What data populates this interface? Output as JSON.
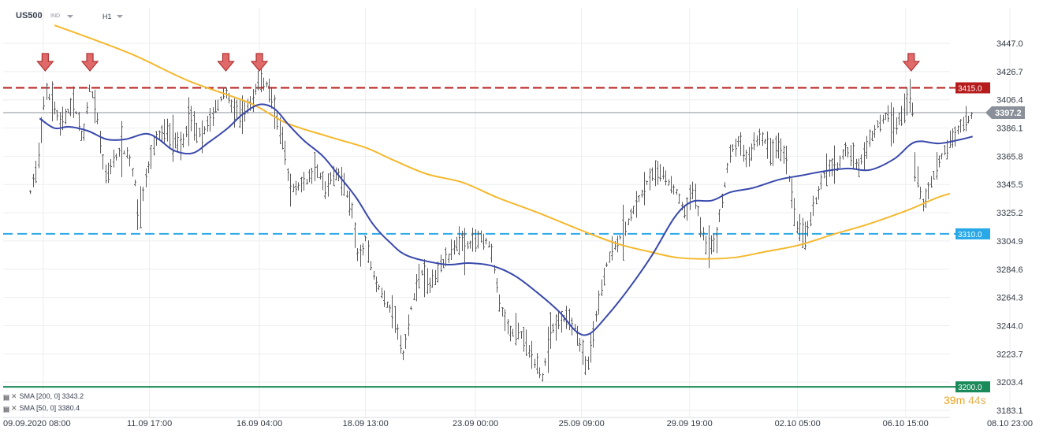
{
  "header": {
    "symbol": "US500",
    "instrument_type": "IND",
    "timeframe": "H1"
  },
  "countdown": {
    "minutes": "39",
    "m_unit": "m",
    "seconds": "44",
    "s_unit": "s"
  },
  "indicators": [
    {
      "icon": "x-icon",
      "label": "SMA [200, 0] 3343.2"
    },
    {
      "icon": "x-icon",
      "label": "SMA [50, 0] 3380.4"
    }
  ],
  "colors": {
    "sma200": "#f5b82e",
    "sma50": "#3949ab",
    "bars": "#5a5a5a",
    "resistance": "#b71c1c",
    "support_mid": "#29a8e8",
    "support_low": "#1a8a5a",
    "current": "#8a9099",
    "arrow_fill": "#e06a6a",
    "arrow_stroke": "#b03030"
  },
  "chart_data": {
    "type": "ohlc",
    "x_tick_labels": [
      "09.09.2020 08:00",
      "11.09 17:00",
      "16.09 04:00",
      "18.09 13:00",
      "23.09 00:00",
      "25.09 09:00",
      "29.09 19:00",
      "02.10 05:00",
      "06.10 15:00",
      "08.10 23:00"
    ],
    "y_tick_labels": [
      3447.0,
      3426.7,
      3406.4,
      3386.1,
      3365.8,
      3345.5,
      3325.2,
      3304.9,
      3284.6,
      3264.3,
      3244.0,
      3223.7,
      3203.4,
      3183.1
    ],
    "ylim": [
      3183.1,
      3447.0
    ],
    "horizontal_levels": [
      {
        "value": 3415.0,
        "label": "3415.0",
        "style": "dashed",
        "color": "#b71c1c"
      },
      {
        "value": 3310.0,
        "label": "3310.0",
        "style": "dashed",
        "color": "#29a8e8"
      },
      {
        "value": 3200.0,
        "label": "3200.0",
        "style": "solid",
        "color": "#1a8a5a"
      }
    ],
    "current_price": {
      "value": 3397.2,
      "label": "3397.2"
    },
    "sma50_path": [
      [
        "09.09 06:00",
        3393
      ],
      [
        "09.09 14:00",
        3386
      ],
      [
        "09.09 22:00",
        3387
      ],
      [
        "10.09 08:00",
        3384
      ],
      [
        "10.09 18:00",
        3378
      ],
      [
        "11.09 04:00",
        3378
      ],
      [
        "11.09 15:00",
        3382
      ],
      [
        "11.09 22:00",
        3378
      ],
      [
        "14.09 06:00",
        3370
      ],
      [
        "14.09 16:00",
        3368
      ],
      [
        "15.09 01:00",
        3376
      ],
      [
        "15.09 11:00",
        3386
      ],
      [
        "15.09 19:00",
        3396
      ],
      [
        "16.09 04:00",
        3403
      ],
      [
        "16.09 12:00",
        3400
      ],
      [
        "16.09 20:00",
        3388
      ],
      [
        "17.09 04:00",
        3377
      ],
      [
        "17.09 14:00",
        3366
      ],
      [
        "17.09 22:00",
        3353
      ],
      [
        "18.09 08:00",
        3336
      ],
      [
        "18.09 17:00",
        3317
      ],
      [
        "21.09 02:00",
        3304
      ],
      [
        "21.09 12:00",
        3294
      ],
      [
        "22.09 08:00",
        3288
      ],
      [
        "22.09 20:00",
        3289
      ],
      [
        "23.09 09:00",
        3287
      ],
      [
        "23.09 21:00",
        3280
      ],
      [
        "24.09 09:00",
        3268
      ],
      [
        "24.09 21:00",
        3254
      ],
      [
        "25.09 06:00",
        3240
      ],
      [
        "25.09 13:00",
        3238
      ],
      [
        "25.09 22:00",
        3250
      ],
      [
        "28.09 10:00",
        3270
      ],
      [
        "28.09 23:00",
        3295
      ],
      [
        "29.09 11:00",
        3322
      ],
      [
        "29.09 20:00",
        3333
      ],
      [
        "30.09 07:00",
        3334
      ],
      [
        "30.09 17:00",
        3340
      ],
      [
        "01.10 05:00",
        3343
      ],
      [
        "01.10 19:00",
        3349
      ],
      [
        "02.10 07:00",
        3352
      ],
      [
        "02.10 19:00",
        3355
      ],
      [
        "05.10 08:00",
        3357
      ],
      [
        "05.10 20:00",
        3356
      ],
      [
        "06.10 09:00",
        3364
      ],
      [
        "06.10 20:00",
        3376
      ],
      [
        "07.10 09:00",
        3375
      ],
      [
        "07.10 21:00",
        3378
      ],
      [
        "08.10 03:00",
        3380
      ]
    ],
    "sma200_path": [
      [
        "09.09 14:00",
        3460
      ],
      [
        "11.09 06:00",
        3440
      ],
      [
        "14.09 14:00",
        3420
      ],
      [
        "15.09 23:00",
        3404
      ],
      [
        "16.09 18:00",
        3390
      ],
      [
        "17.09 17:00",
        3380
      ],
      [
        "18.09 13:00",
        3372
      ],
      [
        "21.09 04:00",
        3363
      ],
      [
        "21.09 22:00",
        3353
      ],
      [
        "22.09 17:00",
        3347
      ],
      [
        "23.09 12:00",
        3336
      ],
      [
        "24.09 10:00",
        3325
      ],
      [
        "25.09 08:00",
        3313
      ],
      [
        "28.09 04:00",
        3303
      ],
      [
        "28.09 22:00",
        3297
      ],
      [
        "29.09 12:00",
        3293
      ],
      [
        "30.09 02:00",
        3292
      ],
      [
        "30.09 19:00",
        3293
      ],
      [
        "01.10 11:00",
        3297
      ],
      [
        "02.10 06:00",
        3302
      ],
      [
        "05.10 01:00",
        3310
      ],
      [
        "05.10 19:00",
        3317
      ],
      [
        "06.10 16:00",
        3327
      ],
      [
        "07.10 10:00",
        3337
      ],
      [
        "08.10 03:00",
        3343
      ]
    ],
    "bar_anchors": [
      [
        "09.09 01:00",
        3340
      ],
      [
        "09.09 05:00",
        3362
      ],
      [
        "09.09 09:00",
        3413
      ],
      [
        "09.09 13:00",
        3404
      ],
      [
        "09.09 17:00",
        3388
      ],
      [
        "10.09 00:00",
        3405
      ],
      [
        "10.09 05:00",
        3378
      ],
      [
        "10.09 09:00",
        3418
      ],
      [
        "10.09 13:00",
        3392
      ],
      [
        "10.09 17:00",
        3350
      ],
      [
        "11.09 01:00",
        3370
      ],
      [
        "11.09 05:00",
        3368
      ],
      [
        "11.09 09:00",
        3348
      ],
      [
        "11.09 11:00",
        3320
      ],
      [
        "11.09 14:00",
        3345
      ],
      [
        "11.09 20:00",
        3378
      ],
      [
        "14.09 03:00",
        3385
      ],
      [
        "14.09 09:00",
        3372
      ],
      [
        "14.09 15:00",
        3392
      ],
      [
        "14.09 21:00",
        3380
      ],
      [
        "15.09 04:00",
        3400
      ],
      [
        "15.09 10:00",
        3412
      ],
      [
        "15.09 14:00",
        3398
      ],
      [
        "15.09 18:00",
        3396
      ],
      [
        "16.09 00:00",
        3405
      ],
      [
        "16.09 04:00",
        3423
      ],
      [
        "16.09 09:00",
        3415
      ],
      [
        "16.09 13:00",
        3394
      ],
      [
        "16.09 17:00",
        3376
      ],
      [
        "16.09 20:00",
        3342
      ],
      [
        "17.09 00:00",
        3344
      ],
      [
        "17.09 05:00",
        3348
      ],
      [
        "17.09 10:00",
        3358
      ],
      [
        "17.09 15:00",
        3343
      ],
      [
        "17.09 20:00",
        3354
      ],
      [
        "18.09 01:00",
        3347
      ],
      [
        "18.09 06:00",
        3325
      ],
      [
        "18.09 09:00",
        3290
      ],
      [
        "18.09 13:00",
        3306
      ],
      [
        "18.09 17:00",
        3280
      ],
      [
        "21.09 00:00",
        3260
      ],
      [
        "21.09 05:00",
        3250
      ],
      [
        "21.09 09:00",
        3222
      ],
      [
        "21.09 14:00",
        3262
      ],
      [
        "21.09 19:00",
        3283
      ],
      [
        "22.09 00:00",
        3272
      ],
      [
        "22.09 05:00",
        3288
      ],
      [
        "22.09 10:00",
        3293
      ],
      [
        "22.09 15:00",
        3306
      ],
      [
        "22.09 20:00",
        3302
      ],
      [
        "23.09 03:00",
        3308
      ],
      [
        "23.09 07:00",
        3304
      ],
      [
        "23.09 10:00",
        3284
      ],
      [
        "23.09 14:00",
        3254
      ],
      [
        "23.09 18:00",
        3240
      ],
      [
        "24.09 00:00",
        3238
      ],
      [
        "24.09 05:00",
        3225
      ],
      [
        "24.09 09:00",
        3214
      ],
      [
        "24.09 12:00",
        3207
      ],
      [
        "24.09 16:00",
        3240
      ],
      [
        "24.09 20:00",
        3247
      ],
      [
        "25.09 01:00",
        3250
      ],
      [
        "25.09 06:00",
        3242
      ],
      [
        "25.09 09:00",
        3225
      ],
      [
        "25.09 12:00",
        3214
      ],
      [
        "25.09 16:00",
        3245
      ],
      [
        "25.09 21:00",
        3282
      ],
      [
        "28.09 02:00",
        3300
      ],
      [
        "28.09 07:00",
        3310
      ],
      [
        "28.09 12:00",
        3325
      ],
      [
        "28.09 17:00",
        3338
      ],
      [
        "28.09 22:00",
        3352
      ],
      [
        "29.09 03:00",
        3357
      ],
      [
        "29.09 07:00",
        3348
      ],
      [
        "29.09 12:00",
        3340
      ],
      [
        "29.09 16:00",
        3325
      ],
      [
        "29.09 21:00",
        3343
      ],
      [
        "30.09 01:00",
        3315
      ],
      [
        "30.09 05:00",
        3300
      ],
      [
        "30.09 09:00",
        3305
      ],
      [
        "30.09 13:00",
        3340
      ],
      [
        "30.09 17:00",
        3370
      ],
      [
        "30.09 21:00",
        3376
      ],
      [
        "01.10 02:00",
        3363
      ],
      [
        "01.10 06:00",
        3376
      ],
      [
        "01.10 10:00",
        3380
      ],
      [
        "01.10 14:00",
        3370
      ],
      [
        "01.10 18:00",
        3374
      ],
      [
        "01.10 22:00",
        3364
      ],
      [
        "02.10 01:00",
        3345
      ],
      [
        "02.10 04:00",
        3318
      ],
      [
        "02.10 09:00",
        3308
      ],
      [
        "02.10 13:00",
        3327
      ],
      [
        "02.10 17:00",
        3344
      ],
      [
        "02.10 21:00",
        3360
      ],
      [
        "05.10 02:00",
        3358
      ],
      [
        "05.10 06:00",
        3370
      ],
      [
        "05.10 10:00",
        3366
      ],
      [
        "05.10 14:00",
        3358
      ],
      [
        "05.10 18:00",
        3372
      ],
      [
        "05.10 22:00",
        3384
      ],
      [
        "06.10 02:00",
        3392
      ],
      [
        "06.10 06:00",
        3397
      ],
      [
        "06.10 10:00",
        3388
      ],
      [
        "06.10 13:00",
        3396
      ],
      [
        "06.10 16:00",
        3405
      ],
      [
        "06.10 18:00",
        3414
      ],
      [
        "06.10 20:00",
        3360
      ],
      [
        "07.10 00:00",
        3330
      ],
      [
        "07.10 04:00",
        3345
      ],
      [
        "07.10 08:00",
        3360
      ],
      [
        "07.10 13:00",
        3372
      ],
      [
        "07.10 18:00",
        3382
      ],
      [
        "08.10 00:00",
        3392
      ],
      [
        "08.10 03:00",
        3396
      ]
    ],
    "resistance_touches": [
      "09.09 09:00",
      "10.09 09:00",
      "15.09 10:00",
      "16.09 04:00",
      "06.10 18:00"
    ],
    "grid": true,
    "y_axis_position": "right"
  }
}
